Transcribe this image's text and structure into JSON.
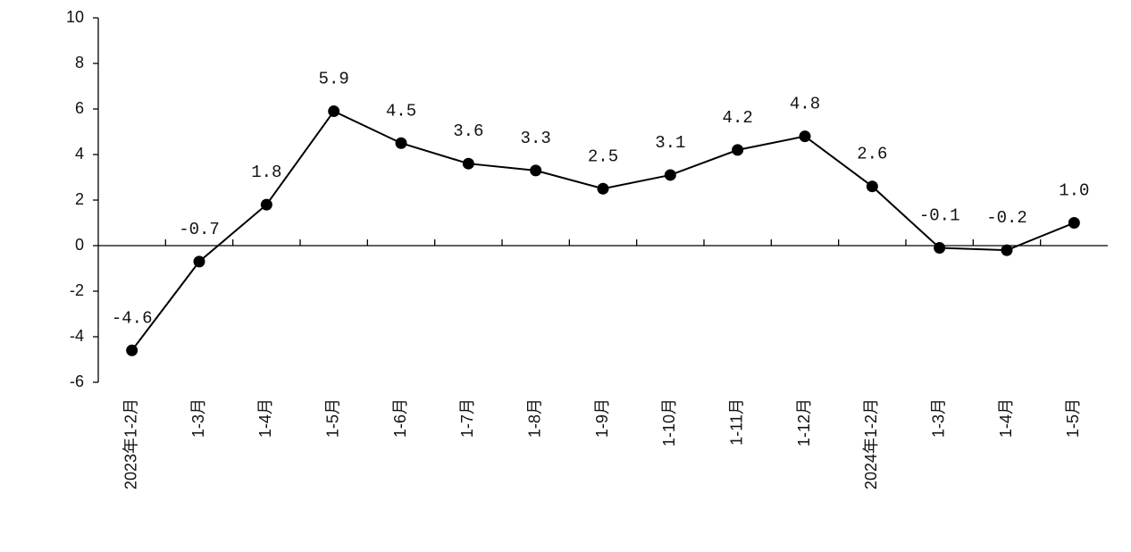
{
  "chart_data": {
    "type": "line",
    "categories": [
      "2023年1-2月",
      "1-3月",
      "1-4月",
      "1-5月",
      "1-6月",
      "1-7月",
      "1-8月",
      "1-9月",
      "1-10月",
      "1-11月",
      "1-12月",
      "2024年1-2月",
      "1-3月",
      "1-4月",
      "1-5月"
    ],
    "values": [
      -4.6,
      -0.7,
      1.8,
      5.9,
      4.5,
      3.6,
      3.3,
      2.5,
      3.1,
      4.2,
      4.8,
      2.6,
      -0.1,
      -0.2,
      1.0
    ],
    "value_labels": [
      "-4.6",
      "-0.7",
      "1.8",
      "5.9",
      "4.5",
      "3.6",
      "3.3",
      "2.5",
      "3.1",
      "4.2",
      "4.8",
      "2.6",
      "-0.1",
      "-0.2",
      "1.0"
    ],
    "color": "#000000",
    "ylim": [
      -6,
      10
    ],
    "yticks": [
      -6,
      -4,
      -2,
      0,
      2,
      4,
      6,
      8,
      10
    ],
    "grid": false
  }
}
